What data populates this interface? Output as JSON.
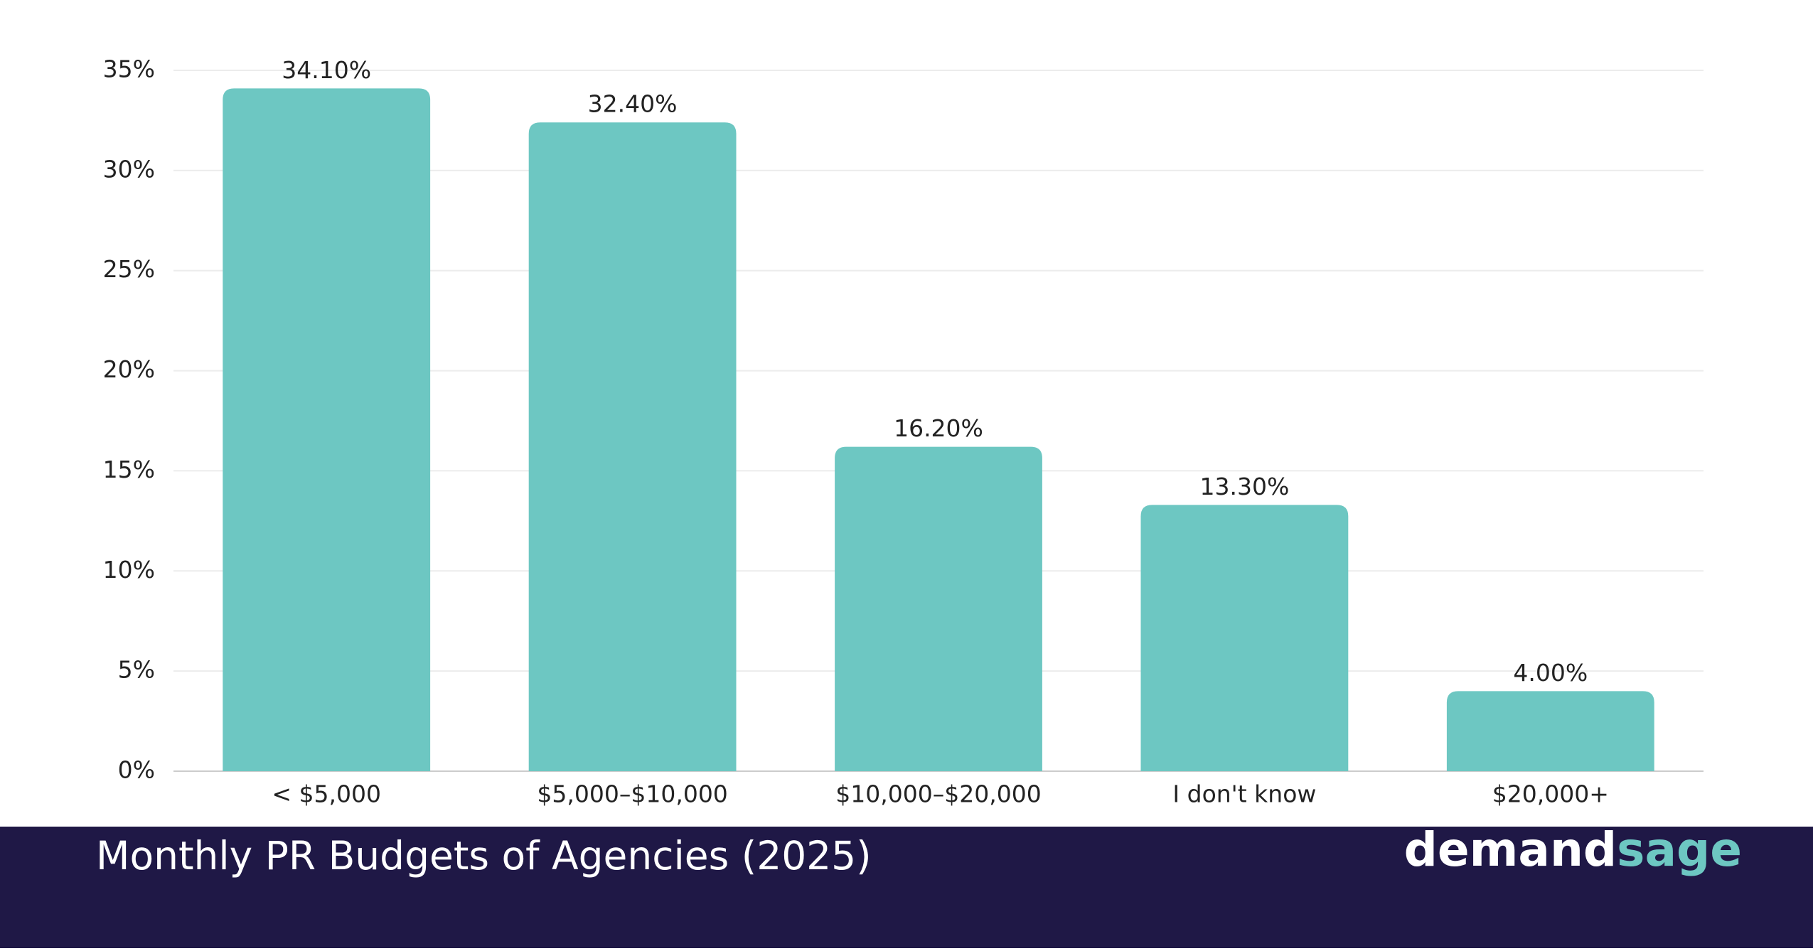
{
  "chart_data": {
    "type": "bar",
    "title": "Monthly PR Budgets of Agencies (2025)",
    "logo": [
      "demand",
      "sage"
    ],
    "categories": [
      "< $5,000",
      "$5,000–$10,000",
      "$10,000–$20,000",
      "I don't know",
      "$20,000+"
    ],
    "values": [
      34.1,
      32.4,
      16.2,
      13.3,
      4.0
    ],
    "value_labels": [
      "34.10%",
      "32.40%",
      "16.20%",
      "13.30%",
      "4.00%"
    ],
    "color": "#6dc7c2",
    "ylim": [
      0,
      35
    ],
    "yticks": [
      {
        "value": 0,
        "label": "0%"
      },
      {
        "value": 5,
        "label": "5%"
      },
      {
        "value": 10,
        "label": "10%"
      },
      {
        "value": 15,
        "label": "15%"
      },
      {
        "value": 20,
        "label": "20%"
      },
      {
        "value": 25,
        "label": "25%"
      },
      {
        "value": 30,
        "label": "30%"
      },
      {
        "value": 35,
        "label": "35%"
      }
    ],
    "grid": true
  }
}
